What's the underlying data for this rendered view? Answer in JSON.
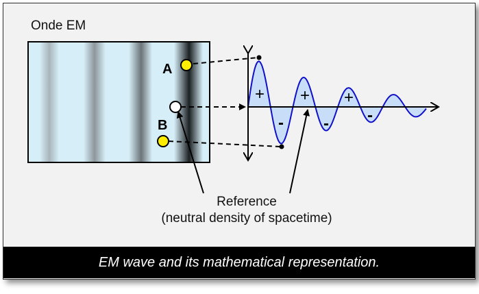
{
  "diagram": {
    "title": "Onde EM",
    "point_a_label": "A",
    "point_b_label": "B",
    "reference_label_line1": "Reference",
    "reference_label_line2": "(neutral density of spacetime)",
    "plus_sign": "+",
    "minus_sign": "-",
    "caption": "EM wave and its mathematical representation.",
    "colors": {
      "wave_line": "#1010c8",
      "wave_fill": "#c8ddf8",
      "point_fill": "#ffee00",
      "caption_bg": "#000000"
    }
  }
}
